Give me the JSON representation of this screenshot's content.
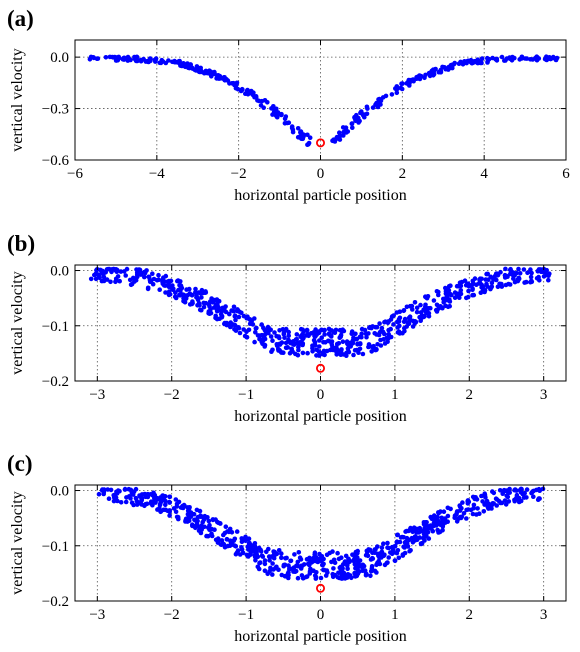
{
  "chart_data": [
    {
      "type": "scatter",
      "panel_label": "(a)",
      "xlabel": "horizontal particle position",
      "ylabel": "vertical velocity",
      "xlim": [
        -6,
        6
      ],
      "ylim": [
        -0.6,
        0.1
      ],
      "xticks": [
        -6,
        -4,
        -2,
        0,
        2,
        4,
        6
      ],
      "xtick_labels": [
        "−6",
        "−4",
        "−2",
        "0",
        "2",
        "4",
        "6"
      ],
      "yticks": [
        0.0,
        -0.3,
        -0.6
      ],
      "ytick_labels": [
        "0.0",
        "−0.3",
        "−0.6"
      ],
      "grid": true,
      "point_color": "#0000ff",
      "marker_color": "#ff0000",
      "marker": {
        "x": 0.0,
        "y": -0.5
      },
      "envelope": [
        [
          -5.8,
          -0.005
        ],
        [
          -4.5,
          -0.01
        ],
        [
          -3.5,
          -0.03
        ],
        [
          -3.0,
          -0.07
        ],
        [
          -2.5,
          -0.11
        ],
        [
          -2.0,
          -0.17
        ],
        [
          -1.5,
          -0.25
        ],
        [
          -1.0,
          -0.34
        ],
        [
          -0.6,
          -0.43
        ],
        [
          -0.3,
          -0.48
        ]
      ],
      "n_points": 380,
      "noise": 0.012,
      "inner_gap": 0.25,
      "seed": 11
    },
    {
      "type": "scatter",
      "panel_label": "(b)",
      "xlabel": "horizontal particle position",
      "ylabel": "vertical velocity",
      "xlim": [
        -3.3,
        3.3
      ],
      "ylim": [
        -0.2,
        0.01
      ],
      "xticks": [
        -3,
        -2,
        -1,
        0,
        1,
        2,
        3
      ],
      "xtick_labels": [
        "−3",
        "−2",
        "−1",
        "0",
        "1",
        "2",
        "3"
      ],
      "yticks": [
        0.0,
        -0.1,
        -0.2
      ],
      "ytick_labels": [
        "0.0",
        "−0.1",
        "−0.2"
      ],
      "grid": true,
      "point_color": "#0000ff",
      "marker_color": "#ff0000",
      "marker": {
        "x": 0.0,
        "y": -0.177
      },
      "envelope": [
        [
          -3.1,
          -0.001
        ],
        [
          -2.5,
          -0.01
        ],
        [
          -2.0,
          -0.03
        ],
        [
          -1.5,
          -0.06
        ],
        [
          -1.0,
          -0.1
        ],
        [
          -0.7,
          -0.125
        ],
        [
          -0.4,
          -0.13
        ],
        [
          0.0,
          -0.13
        ]
      ],
      "n_points": 720,
      "noise": 0.016,
      "inner_gap": 0.0,
      "seed": 23
    },
    {
      "type": "scatter",
      "panel_label": "(c)",
      "xlabel": "horizontal particle position",
      "ylabel": "vertical velocity",
      "xlim": [
        -3.3,
        3.3
      ],
      "ylim": [
        -0.2,
        0.01
      ],
      "xticks": [
        -3,
        -2,
        -1,
        0,
        1,
        2,
        3
      ],
      "xtick_labels": [
        "−3",
        "−2",
        "−1",
        "0",
        "1",
        "2",
        "3"
      ],
      "yticks": [
        0.0,
        -0.1,
        -0.2
      ],
      "ytick_labels": [
        "0.0",
        "−0.1",
        "−0.2"
      ],
      "grid": true,
      "point_color": "#0000ff",
      "marker_color": "#ff0000",
      "marker": {
        "x": 0.0,
        "y": -0.177
      },
      "envelope": [
        [
          -3.0,
          -0.001
        ],
        [
          -2.5,
          -0.01
        ],
        [
          -2.0,
          -0.03
        ],
        [
          -1.5,
          -0.065
        ],
        [
          -1.0,
          -0.105
        ],
        [
          -0.7,
          -0.13
        ],
        [
          -0.4,
          -0.135
        ],
        [
          0.0,
          -0.135
        ]
      ],
      "n_points": 720,
      "noise": 0.016,
      "inner_gap": 0.0,
      "seed": 37
    }
  ]
}
